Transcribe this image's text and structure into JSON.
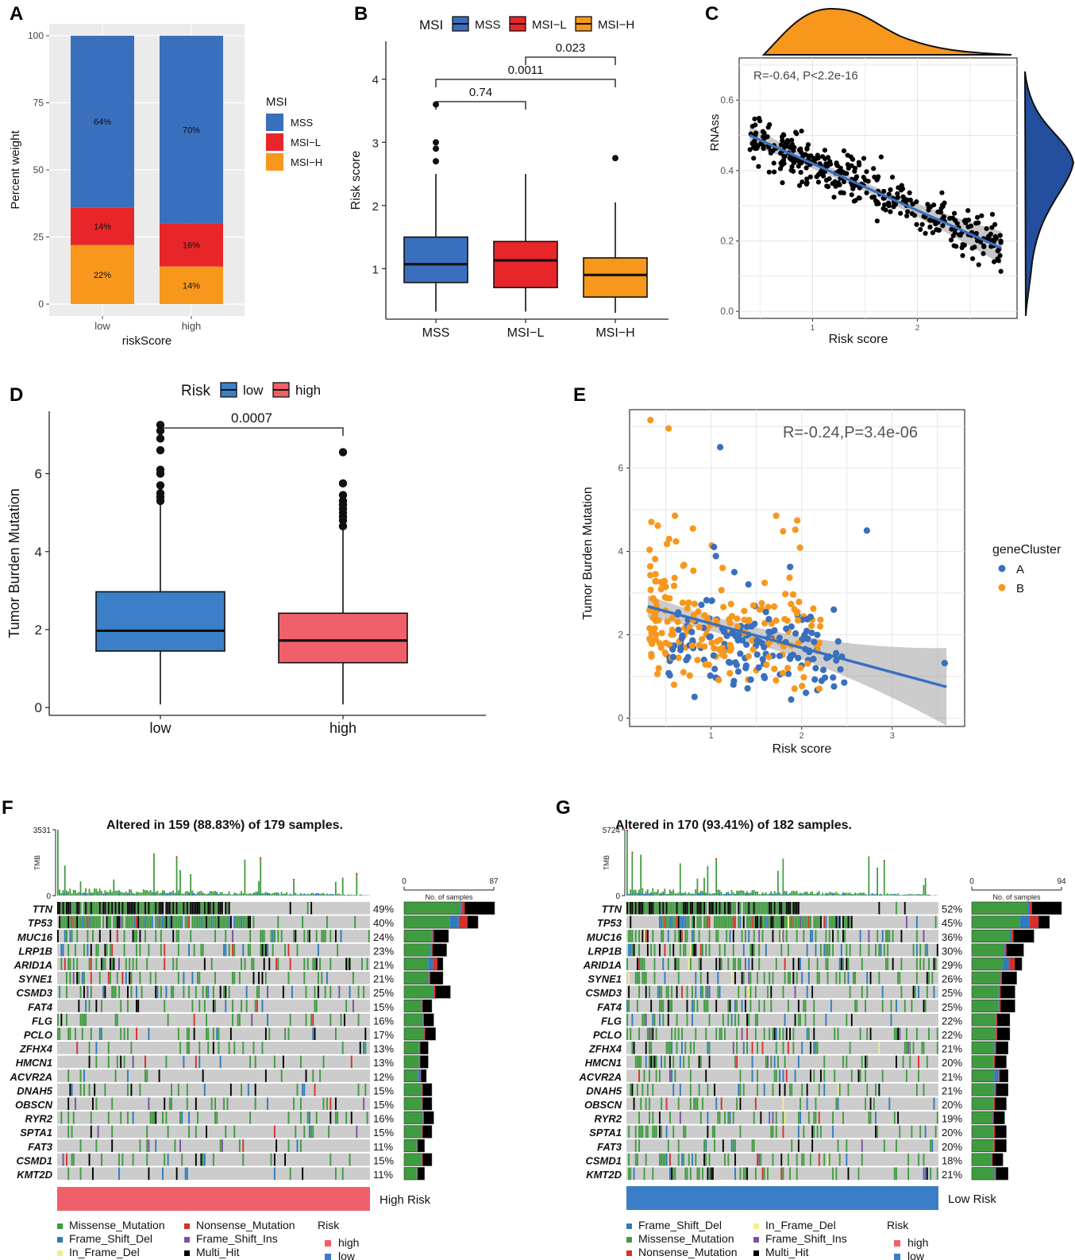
{
  "colors": {
    "mss": "#3a6fbe",
    "msil": "#e8262a",
    "msih": "#f7981d",
    "low": "#3a7fc8",
    "high": "#f0606a",
    "clusterA": "#3a6fbe",
    "clusterB": "#f7981d",
    "missense": "#3f9b3f",
    "frameshift_del": "#2f7bbf",
    "inframe_del": "#f2ef8b",
    "nonsense": "#d7302c",
    "frameshift_ins": "#7b4ea2",
    "multi_hit": "#000000",
    "nonmut": "#cccccc",
    "band_high": "#f0606a",
    "band_low": "#3b7dc6"
  },
  "chart_data": [
    {
      "panel": "A",
      "type": "bar",
      "stacked": true,
      "xlabel": "riskScore",
      "ylabel": "Percent weight",
      "categories": [
        "low",
        "high"
      ],
      "ylim": [
        0,
        100
      ],
      "yticks": [
        "0",
        "25",
        "50",
        "75",
        "100"
      ],
      "legend_title": "MSI",
      "series": [
        {
          "name": "MSS",
          "values": [
            64,
            70
          ],
          "labels": [
            "64%",
            "70%"
          ]
        },
        {
          "name": "MSI−L",
          "values": [
            14,
            16
          ],
          "labels": [
            "14%",
            "16%"
          ]
        },
        {
          "name": "MSI−H",
          "values": [
            22,
            14
          ],
          "labels": [
            "22%",
            "14%"
          ]
        }
      ]
    },
    {
      "panel": "B",
      "type": "box",
      "legend_title": "MSI",
      "legend": [
        "MSS",
        "MSI−L",
        "MSI−H"
      ],
      "ylabel": "Risk score",
      "ylim": [
        0.2,
        4.6
      ],
      "yticks": [
        "1",
        "2",
        "3",
        "4"
      ],
      "groups": [
        {
          "name": "MSS",
          "q1": 0.78,
          "median": 1.07,
          "q3": 1.5,
          "whisker_low": 0.32,
          "whisker_high": 2.5,
          "outliers": [
            2.7,
            2.9,
            3.0,
            3.6
          ]
        },
        {
          "name": "MSI−L",
          "q1": 0.7,
          "median": 1.13,
          "q3": 1.43,
          "whisker_low": 0.32,
          "whisker_high": 2.5,
          "outliers": []
        },
        {
          "name": "MSI−H",
          "q1": 0.55,
          "median": 0.9,
          "q3": 1.17,
          "whisker_low": 0.3,
          "whisker_high": 2.05,
          "outliers": [
            2.75
          ]
        }
      ],
      "comparisons": [
        {
          "from": 0,
          "to": 1,
          "label": "0.74"
        },
        {
          "from": 0,
          "to": 2,
          "label": "0.0011"
        },
        {
          "from": 1,
          "to": 2,
          "label": "0.023"
        }
      ]
    },
    {
      "panel": "C",
      "type": "scatter",
      "xlabel": "Risk score",
      "ylabel": "RNAss",
      "annotation": "R=-0.64, P<2.2e-16",
      "xlim": [
        0.3,
        2.95
      ],
      "ylim": [
        -0.02,
        0.72
      ],
      "xticks": [
        "1",
        "2"
      ],
      "yticks": [
        "0.0",
        "0.2",
        "0.4",
        "0.6"
      ],
      "fit": {
        "x": [
          0.4,
          2.8
        ],
        "y": [
          0.5,
          0.18
        ]
      },
      "n_points": 380
    },
    {
      "panel": "D",
      "type": "box",
      "legend_title": "Risk",
      "legend": [
        "low",
        "high"
      ],
      "ylabel": "Tumor Burden Mutation",
      "ylim": [
        -0.2,
        7.6
      ],
      "yticks": [
        "0",
        "2",
        "4",
        "6"
      ],
      "groups": [
        {
          "name": "low",
          "q1": 1.45,
          "median": 1.97,
          "q3": 2.97,
          "whisker_low": 0.08,
          "whisker_high": 5.2,
          "outliers": [
            5.3,
            5.4,
            5.5,
            5.7,
            6.0,
            6.1,
            6.6,
            6.9,
            7.1,
            7.25
          ]
        },
        {
          "name": "high",
          "q1": 1.15,
          "median": 1.72,
          "q3": 2.42,
          "whisker_low": 0.08,
          "whisker_high": 4.6,
          "outliers": [
            4.65,
            4.8,
            4.9,
            5.0,
            5.1,
            5.2,
            5.3,
            5.45,
            5.75,
            6.55
          ]
        }
      ],
      "comparisons": [
        {
          "from": 0,
          "to": 1,
          "label": "0.0007"
        }
      ]
    },
    {
      "panel": "E",
      "type": "scatter",
      "xlabel": "Risk score",
      "ylabel": "Tumor Burden Mutation",
      "annotation": "R=-0.24,P=3.4e-06",
      "legend_title": "geneCluster",
      "legend": [
        "A",
        "B"
      ],
      "xlim": [
        0.1,
        3.8
      ],
      "ylim": [
        -0.2,
        7.4
      ],
      "xticks": [
        "1",
        "2",
        "3"
      ],
      "yticks": [
        "0",
        "2",
        "4",
        "6"
      ],
      "fit": {
        "x": [
          0.3,
          3.6
        ],
        "y": [
          2.68,
          0.75
        ]
      },
      "n_points": 360
    },
    {
      "panel": "F",
      "type": "heatmap",
      "title": "Altered in 159 (88.83%) of 179 samples.",
      "tmb_max": "3531",
      "tmb_min": "0",
      "tmb_label": "TMB",
      "bar_axis": {
        "min": "0",
        "max": "87",
        "label": "No. of samples"
      },
      "risk_label": "High Risk",
      "n_samples": 179,
      "genes": [
        "TTN",
        "TP53",
        "MUC16",
        "LRP1B",
        "ARID1A",
        "SYNE1",
        "CSMD3",
        "FAT4",
        "FLG",
        "PCLO",
        "ZFHX4",
        "HMCN1",
        "ACVR2A",
        "DNAH5",
        "OBSCN",
        "RYR2",
        "SPTA1",
        "FAT3",
        "CSMD1",
        "KMT2D"
      ],
      "percents": [
        "49%",
        "40%",
        "24%",
        "23%",
        "21%",
        "21%",
        "25%",
        "15%",
        "16%",
        "17%",
        "13%",
        "13%",
        "12%",
        "15%",
        "15%",
        "16%",
        "15%",
        "11%",
        "15%",
        "11%"
      ],
      "legend": [
        "Missense_Mutation",
        "Frame_Shift_Del",
        "In_Frame_Del",
        "Nonsense_Mutation",
        "Frame_Shift_Ins",
        "Multi_Hit"
      ],
      "risk_legend": {
        "title": "Risk",
        "items": [
          "high",
          "low"
        ]
      }
    },
    {
      "panel": "G",
      "type": "heatmap",
      "title": "Altered in 170 (93.41%) of 182 samples.",
      "tmb_max": "5724",
      "tmb_min": "0",
      "tmb_label": "TMB",
      "bar_axis": {
        "min": "0",
        "max": "94",
        "label": "No. of samples"
      },
      "risk_label": "Low Risk",
      "n_samples": 182,
      "genes": [
        "TTN",
        "TP53",
        "MUC16",
        "LRP1B",
        "ARID1A",
        "SYNE1",
        "CSMD3",
        "FAT4",
        "FLG",
        "PCLO",
        "ZFHX4",
        "HMCN1",
        "ACVR2A",
        "DNAH5",
        "OBSCN",
        "RYR2",
        "SPTA1",
        "FAT3",
        "CSMD1",
        "KMT2D"
      ],
      "percents": [
        "52%",
        "45%",
        "36%",
        "30%",
        "29%",
        "26%",
        "25%",
        "25%",
        "22%",
        "22%",
        "21%",
        "20%",
        "21%",
        "21%",
        "20%",
        "19%",
        "20%",
        "20%",
        "18%",
        "21%"
      ],
      "legend": [
        "Frame_Shift_Del",
        "Missense_Mutation",
        "Nonsense_Mutation",
        "In_Frame_Del",
        "Frame_Shift_Ins",
        "Multi_Hit"
      ],
      "risk_legend": {
        "title": "Risk",
        "items": [
          "high",
          "low"
        ]
      }
    }
  ],
  "panel_labels": [
    "A",
    "B",
    "C",
    "D",
    "E",
    "F",
    "G"
  ]
}
